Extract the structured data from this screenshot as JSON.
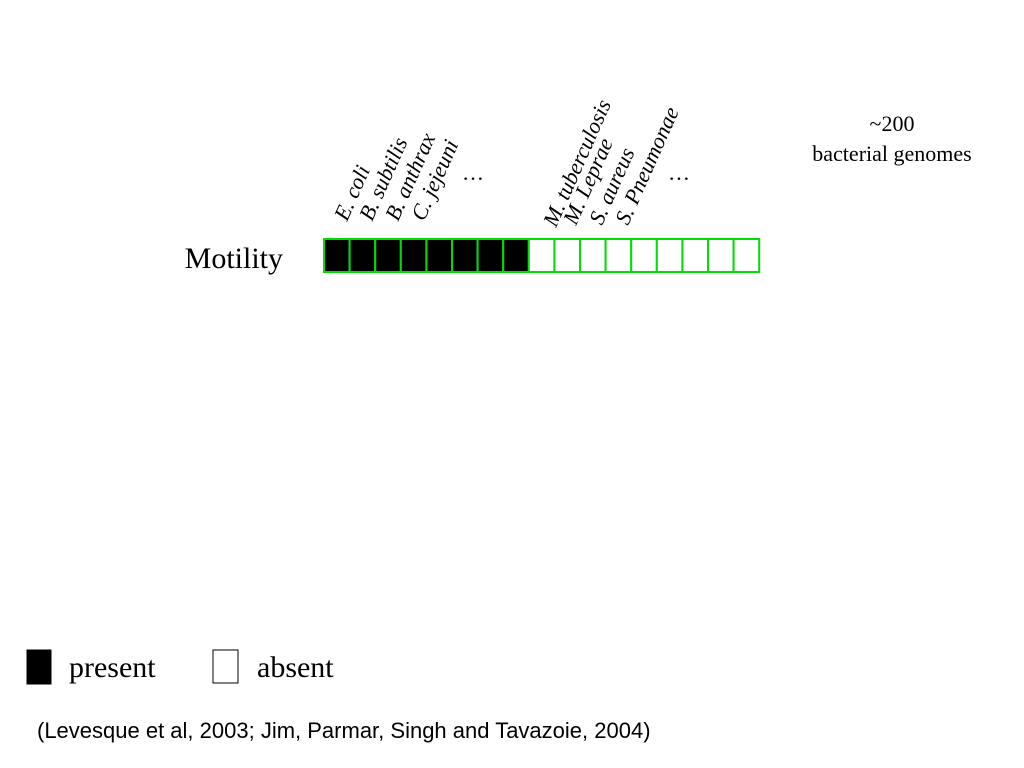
{
  "species_labels": [
    "E. coli",
    "B. subtilis",
    "B. anthrax",
    "C. jejeuni",
    "…",
    "M. tuberculosis",
    "M. Leprae",
    "S. aureus",
    "S. Pneumonae",
    "…"
  ],
  "genome_note": {
    "line1": "~200",
    "line2": "bacterial genomes"
  },
  "row_label": "Motility",
  "cells": [
    1,
    1,
    1,
    1,
    1,
    1,
    1,
    1,
    0,
    0,
    0,
    0,
    0,
    0,
    0,
    0,
    0
  ],
  "legend": {
    "present": "present",
    "absent": "absent"
  },
  "citation": "(Levesque et al, 2003; Jim, Parmar, Singh and Tavazoie, 2004)",
  "colors": {
    "present_fill": "#000000",
    "absent_fill": "#ffffff",
    "grid_stroke": "#00e000",
    "text": "#000000"
  }
}
